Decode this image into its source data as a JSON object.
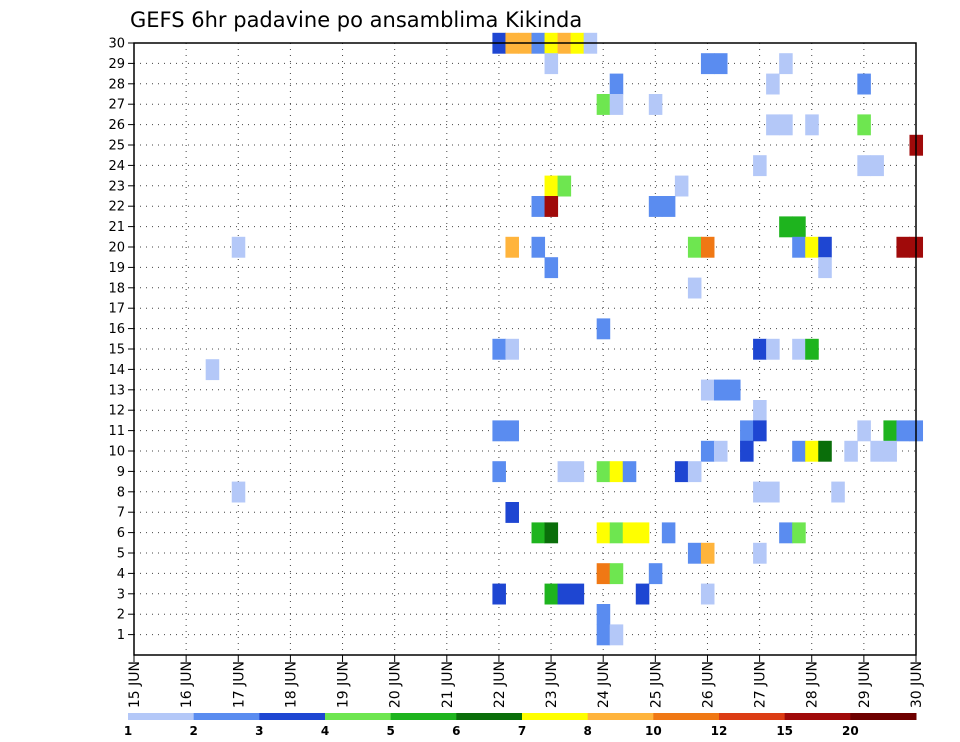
{
  "chart_data": {
    "type": "heatmap",
    "title": "GEFS 6hr padavine po ansamblima Kikinda",
    "x_ticks": [
      "15 JUN",
      "16 JUN",
      "17 JUN",
      "18 JUN",
      "19 JUN",
      "20 JUN",
      "21 JUN",
      "22 JUN",
      "23 JUN",
      "24 JUN",
      "25 JUN",
      "26 JUN",
      "27 JUN",
      "28 JUN",
      "29 JUN",
      "30 JUN"
    ],
    "y_ticks": [
      "1",
      "2",
      "3",
      "4",
      "5",
      "6",
      "7",
      "8",
      "9",
      "10",
      "11",
      "12",
      "13",
      "14",
      "15",
      "16",
      "17",
      "18",
      "19",
      "20",
      "21",
      "22",
      "23",
      "24",
      "25",
      "26",
      "27",
      "28",
      "29",
      "30"
    ],
    "xlim_days": [
      15,
      30
    ],
    "ylim": [
      0,
      30
    ],
    "time_step_hours": 6,
    "grid": "dotted",
    "legend": {
      "position": "bottom",
      "colors": [
        "#b4c8f8",
        "#5a8cf0",
        "#1e46d2",
        "#6ee650",
        "#1eb41e",
        "#0a6e0a",
        "#ffff00",
        "#ffb43c",
        "#f07814",
        "#dc3c14",
        "#a00a0a",
        "#6e0000"
      ],
      "labels": [
        "1",
        "2",
        "3",
        "4",
        "5",
        "6",
        "7",
        "8",
        "10",
        "12",
        "15",
        "20"
      ]
    },
    "cells": [
      {
        "day": 22.0,
        "member": 30,
        "class": 2
      },
      {
        "day": 22.25,
        "member": 30,
        "class": 7
      },
      {
        "day": 22.5,
        "member": 30,
        "class": 7
      },
      {
        "day": 22.75,
        "member": 30,
        "class": 1
      },
      {
        "day": 23.0,
        "member": 30,
        "class": 6
      },
      {
        "day": 23.25,
        "member": 30,
        "class": 7
      },
      {
        "day": 23.5,
        "member": 30,
        "class": 6
      },
      {
        "day": 23.75,
        "member": 30,
        "class": 0
      },
      {
        "day": 23.0,
        "member": 29,
        "class": 0
      },
      {
        "day": 26.0,
        "member": 29,
        "class": 1
      },
      {
        "day": 26.25,
        "member": 29,
        "class": 1
      },
      {
        "day": 27.5,
        "member": 29,
        "class": 0
      },
      {
        "day": 24.25,
        "member": 28,
        "class": 1
      },
      {
        "day": 27.25,
        "member": 28,
        "class": 0
      },
      {
        "day": 29.0,
        "member": 28,
        "class": 1
      },
      {
        "day": 24.0,
        "member": 27,
        "class": 3
      },
      {
        "day": 24.25,
        "member": 27,
        "class": 0
      },
      {
        "day": 25.0,
        "member": 27,
        "class": 0
      },
      {
        "day": 27.25,
        "member": 26,
        "class": 0
      },
      {
        "day": 27.5,
        "member": 26,
        "class": 0
      },
      {
        "day": 28.0,
        "member": 26,
        "class": 0
      },
      {
        "day": 29.0,
        "member": 26,
        "class": 3
      },
      {
        "day": 30.0,
        "member": 25,
        "class": 10
      },
      {
        "day": 27.0,
        "member": 24,
        "class": 0
      },
      {
        "day": 29.0,
        "member": 24,
        "class": 0
      },
      {
        "day": 29.25,
        "member": 24,
        "class": 0
      },
      {
        "day": 23.0,
        "member": 23,
        "class": 6
      },
      {
        "day": 23.25,
        "member": 23,
        "class": 3
      },
      {
        "day": 25.5,
        "member": 23,
        "class": 0
      },
      {
        "day": 22.75,
        "member": 22,
        "class": 1
      },
      {
        "day": 23.0,
        "member": 22,
        "class": 10
      },
      {
        "day": 25.0,
        "member": 22,
        "class": 1
      },
      {
        "day": 25.25,
        "member": 22,
        "class": 1
      },
      {
        "day": 27.5,
        "member": 21,
        "class": 4
      },
      {
        "day": 27.75,
        "member": 21,
        "class": 4
      },
      {
        "day": 17.0,
        "member": 20,
        "class": 0
      },
      {
        "day": 22.25,
        "member": 20,
        "class": 7
      },
      {
        "day": 22.75,
        "member": 20,
        "class": 1
      },
      {
        "day": 25.75,
        "member": 20,
        "class": 3
      },
      {
        "day": 26.0,
        "member": 20,
        "class": 8
      },
      {
        "day": 27.75,
        "member": 20,
        "class": 1
      },
      {
        "day": 28.0,
        "member": 20,
        "class": 6
      },
      {
        "day": 28.25,
        "member": 20,
        "class": 2
      },
      {
        "day": 29.75,
        "member": 20,
        "class": 10
      },
      {
        "day": 30.0,
        "member": 20,
        "class": 10
      },
      {
        "day": 23.0,
        "member": 19,
        "class": 1
      },
      {
        "day": 28.25,
        "member": 19,
        "class": 0
      },
      {
        "day": 25.75,
        "member": 18,
        "class": 0
      },
      {
        "day": 24.0,
        "member": 16,
        "class": 1
      },
      {
        "day": 22.0,
        "member": 15,
        "class": 1
      },
      {
        "day": 22.25,
        "member": 15,
        "class": 0
      },
      {
        "day": 27.0,
        "member": 15,
        "class": 2
      },
      {
        "day": 27.25,
        "member": 15,
        "class": 0
      },
      {
        "day": 27.75,
        "member": 15,
        "class": 0
      },
      {
        "day": 28.0,
        "member": 15,
        "class": 4
      },
      {
        "day": 16.5,
        "member": 14,
        "class": 0
      },
      {
        "day": 26.0,
        "member": 13,
        "class": 0
      },
      {
        "day": 26.25,
        "member": 13,
        "class": 1
      },
      {
        "day": 26.5,
        "member": 13,
        "class": 1
      },
      {
        "day": 27.0,
        "member": 12,
        "class": 0
      },
      {
        "day": 22.0,
        "member": 11,
        "class": 1
      },
      {
        "day": 22.25,
        "member": 11,
        "class": 1
      },
      {
        "day": 26.75,
        "member": 11,
        "class": 1
      },
      {
        "day": 27.0,
        "member": 11,
        "class": 2
      },
      {
        "day": 29.0,
        "member": 11,
        "class": 0
      },
      {
        "day": 29.5,
        "member": 11,
        "class": 4
      },
      {
        "day": 29.75,
        "member": 11,
        "class": 1
      },
      {
        "day": 30.0,
        "member": 11,
        "class": 1
      },
      {
        "day": 26.0,
        "member": 10,
        "class": 1
      },
      {
        "day": 26.25,
        "member": 10,
        "class": 0
      },
      {
        "day": 26.75,
        "member": 10,
        "class": 2
      },
      {
        "day": 27.75,
        "member": 10,
        "class": 1
      },
      {
        "day": 28.0,
        "member": 10,
        "class": 6
      },
      {
        "day": 28.25,
        "member": 10,
        "class": 5
      },
      {
        "day": 28.75,
        "member": 10,
        "class": 0
      },
      {
        "day": 29.25,
        "member": 10,
        "class": 0
      },
      {
        "day": 29.5,
        "member": 10,
        "class": 0
      },
      {
        "day": 22.0,
        "member": 9,
        "class": 1
      },
      {
        "day": 23.25,
        "member": 9,
        "class": 0
      },
      {
        "day": 23.5,
        "member": 9,
        "class": 0
      },
      {
        "day": 24.0,
        "member": 9,
        "class": 3
      },
      {
        "day": 24.25,
        "member": 9,
        "class": 6
      },
      {
        "day": 24.5,
        "member": 9,
        "class": 1
      },
      {
        "day": 25.5,
        "member": 9,
        "class": 2
      },
      {
        "day": 25.75,
        "member": 9,
        "class": 0
      },
      {
        "day": 17.0,
        "member": 8,
        "class": 0
      },
      {
        "day": 27.0,
        "member": 8,
        "class": 0
      },
      {
        "day": 27.25,
        "member": 8,
        "class": 0
      },
      {
        "day": 28.5,
        "member": 8,
        "class": 0
      },
      {
        "day": 22.25,
        "member": 7,
        "class": 2
      },
      {
        "day": 22.75,
        "member": 6,
        "class": 4
      },
      {
        "day": 23.0,
        "member": 6,
        "class": 5
      },
      {
        "day": 24.0,
        "member": 6,
        "class": 6
      },
      {
        "day": 24.25,
        "member": 6,
        "class": 3
      },
      {
        "day": 24.5,
        "member": 6,
        "class": 6
      },
      {
        "day": 24.75,
        "member": 6,
        "class": 6
      },
      {
        "day": 25.25,
        "member": 6,
        "class": 1
      },
      {
        "day": 27.5,
        "member": 6,
        "class": 1
      },
      {
        "day": 27.75,
        "member": 6,
        "class": 3
      },
      {
        "day": 25.75,
        "member": 5,
        "class": 1
      },
      {
        "day": 26.0,
        "member": 5,
        "class": 7
      },
      {
        "day": 27.0,
        "member": 5,
        "class": 0
      },
      {
        "day": 24.0,
        "member": 4,
        "class": 8
      },
      {
        "day": 24.25,
        "member": 4,
        "class": 3
      },
      {
        "day": 25.0,
        "member": 4,
        "class": 1
      },
      {
        "day": 22.0,
        "member": 3,
        "class": 2
      },
      {
        "day": 23.0,
        "member": 3,
        "class": 4
      },
      {
        "day": 23.25,
        "member": 3,
        "class": 2
      },
      {
        "day": 23.5,
        "member": 3,
        "class": 2
      },
      {
        "day": 24.75,
        "member": 3,
        "class": 2
      },
      {
        "day": 26.0,
        "member": 3,
        "class": 0
      },
      {
        "day": 24.0,
        "member": 2,
        "class": 1
      },
      {
        "day": 24.0,
        "member": 1,
        "class": 1
      },
      {
        "day": 24.25,
        "member": 1,
        "class": 0
      }
    ]
  }
}
